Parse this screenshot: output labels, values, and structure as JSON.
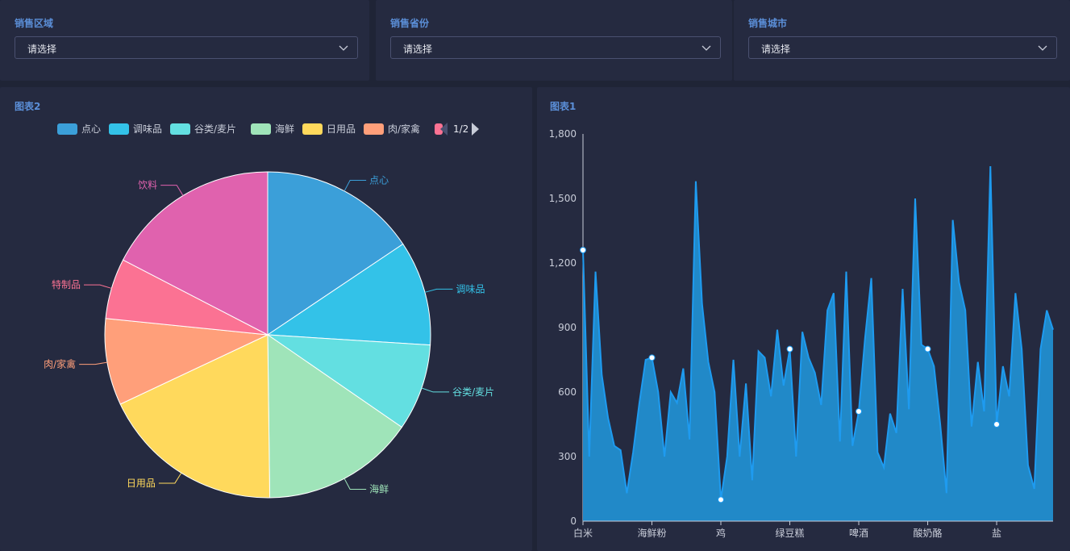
{
  "filters": [
    {
      "label": "销售区域",
      "value": "请选择"
    },
    {
      "label": "销售省份",
      "value": "请选择"
    },
    {
      "label": "销售城市",
      "value": "请选择"
    }
  ],
  "pie_panel": {
    "title": "图表2",
    "legend": {
      "items": [
        {
          "name": "点心",
          "color": "#3b9fd9"
        },
        {
          "name": "调味品",
          "color": "#33c2e8"
        },
        {
          "name": "谷类/麦片",
          "color": "#63dfe1"
        },
        {
          "name": "海鲜",
          "color": "#9fe4b9"
        },
        {
          "name": "日用品",
          "color": "#ffd95c"
        },
        {
          "name": "肉/家禽",
          "color": "#ff9f7a"
        },
        {
          "name": "",
          "color": "#fb7293"
        }
      ],
      "page": "1/2"
    }
  },
  "line_panel": {
    "title": "图表1"
  },
  "chart_data": [
    {
      "type": "pie",
      "title": "图表2",
      "categories": [
        "点心",
        "调味品",
        "谷类/麦片",
        "海鲜",
        "日用品",
        "肉/家禽",
        "特制品",
        "饮料"
      ],
      "values": [
        15.6,
        10.4,
        8.6,
        15.2,
        18.2,
        8.6,
        6.0,
        17.4
      ],
      "colors": [
        "#3b9fd9",
        "#33c2e8",
        "#63dfe1",
        "#9fe4b9",
        "#ffd95c",
        "#ff9f7a",
        "#fb7293",
        "#e062ae"
      ]
    },
    {
      "type": "area",
      "title": "图表1",
      "ylim": [
        0,
        1800
      ],
      "yticks": [
        "0",
        "300",
        "600",
        "900",
        "1,200",
        "1,500",
        "1,800"
      ],
      "xticks": [
        "白米",
        "海鲜粉",
        "鸡",
        "绿豆糕",
        "啤酒",
        "酸奶酪",
        "盐"
      ],
      "values": [
        1260,
        300,
        1160,
        680,
        480,
        350,
        330,
        130,
        320,
        550,
        750,
        760,
        600,
        300,
        600,
        550,
        710,
        380,
        1580,
        1010,
        740,
        600,
        100,
        300,
        750,
        300,
        640,
        190,
        790,
        760,
        580,
        890,
        630,
        800,
        300,
        880,
        760,
        690,
        540,
        980,
        1060,
        370,
        1160,
        350,
        510,
        850,
        1130,
        320,
        250,
        500,
        410,
        1080,
        520,
        1500,
        820,
        800,
        720,
        450,
        130,
        1400,
        1110,
        980,
        440,
        740,
        510,
        1650,
        450,
        720,
        580,
        1060,
        800,
        260,
        150,
        800,
        980,
        890
      ],
      "marker_indices": [
        0,
        11,
        22,
        33,
        44,
        55,
        66
      ],
      "color": "#1e9bf0"
    }
  ]
}
